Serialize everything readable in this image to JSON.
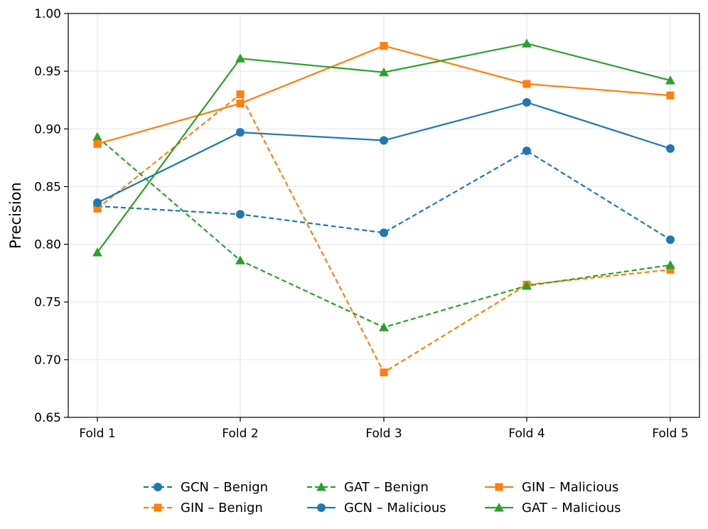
{
  "chart_data": {
    "type": "line",
    "title": "",
    "xlabel": "",
    "ylabel": "Precision",
    "categories": [
      "Fold 1",
      "Fold 2",
      "Fold 3",
      "Fold 4",
      "Fold 5"
    ],
    "ylim": [
      0.65,
      1.0
    ],
    "yticks": [
      "0.65",
      "0.70",
      "0.75",
      "0.80",
      "0.85",
      "0.90",
      "0.95",
      "1.00"
    ],
    "yticks_values": [
      0.65,
      0.7,
      0.75,
      0.8,
      0.85,
      0.9,
      0.95,
      1.0
    ],
    "grid": true,
    "legend_position": "bottom-center",
    "series": [
      {
        "name": "GCN – Benign",
        "color": "#1f77b4",
        "dash": "dashed",
        "marker": "circle",
        "values": [
          0.833,
          0.826,
          0.81,
          0.881,
          0.804
        ]
      },
      {
        "name": "GIN – Benign",
        "color": "#ff7f0e",
        "dash": "dashed",
        "marker": "square",
        "values": [
          0.831,
          0.93,
          0.689,
          0.765,
          0.778
        ]
      },
      {
        "name": "GAT – Benign",
        "color": "#2ca02c",
        "dash": "dashed",
        "marker": "triangle",
        "values": [
          0.893,
          0.786,
          0.728,
          0.764,
          0.782
        ]
      },
      {
        "name": "GCN – Malicious",
        "color": "#1f77b4",
        "dash": "solid",
        "marker": "circle",
        "values": [
          0.836,
          0.897,
          0.89,
          0.923,
          0.883
        ]
      },
      {
        "name": "GIN – Malicious",
        "color": "#ff7f0e",
        "dash": "solid",
        "marker": "square",
        "values": [
          0.887,
          0.922,
          0.972,
          0.939,
          0.929
        ]
      },
      {
        "name": "GAT – Malicious",
        "color": "#2ca02c",
        "dash": "solid",
        "marker": "triangle",
        "values": [
          0.793,
          0.961,
          0.949,
          0.974,
          0.942
        ]
      }
    ]
  }
}
